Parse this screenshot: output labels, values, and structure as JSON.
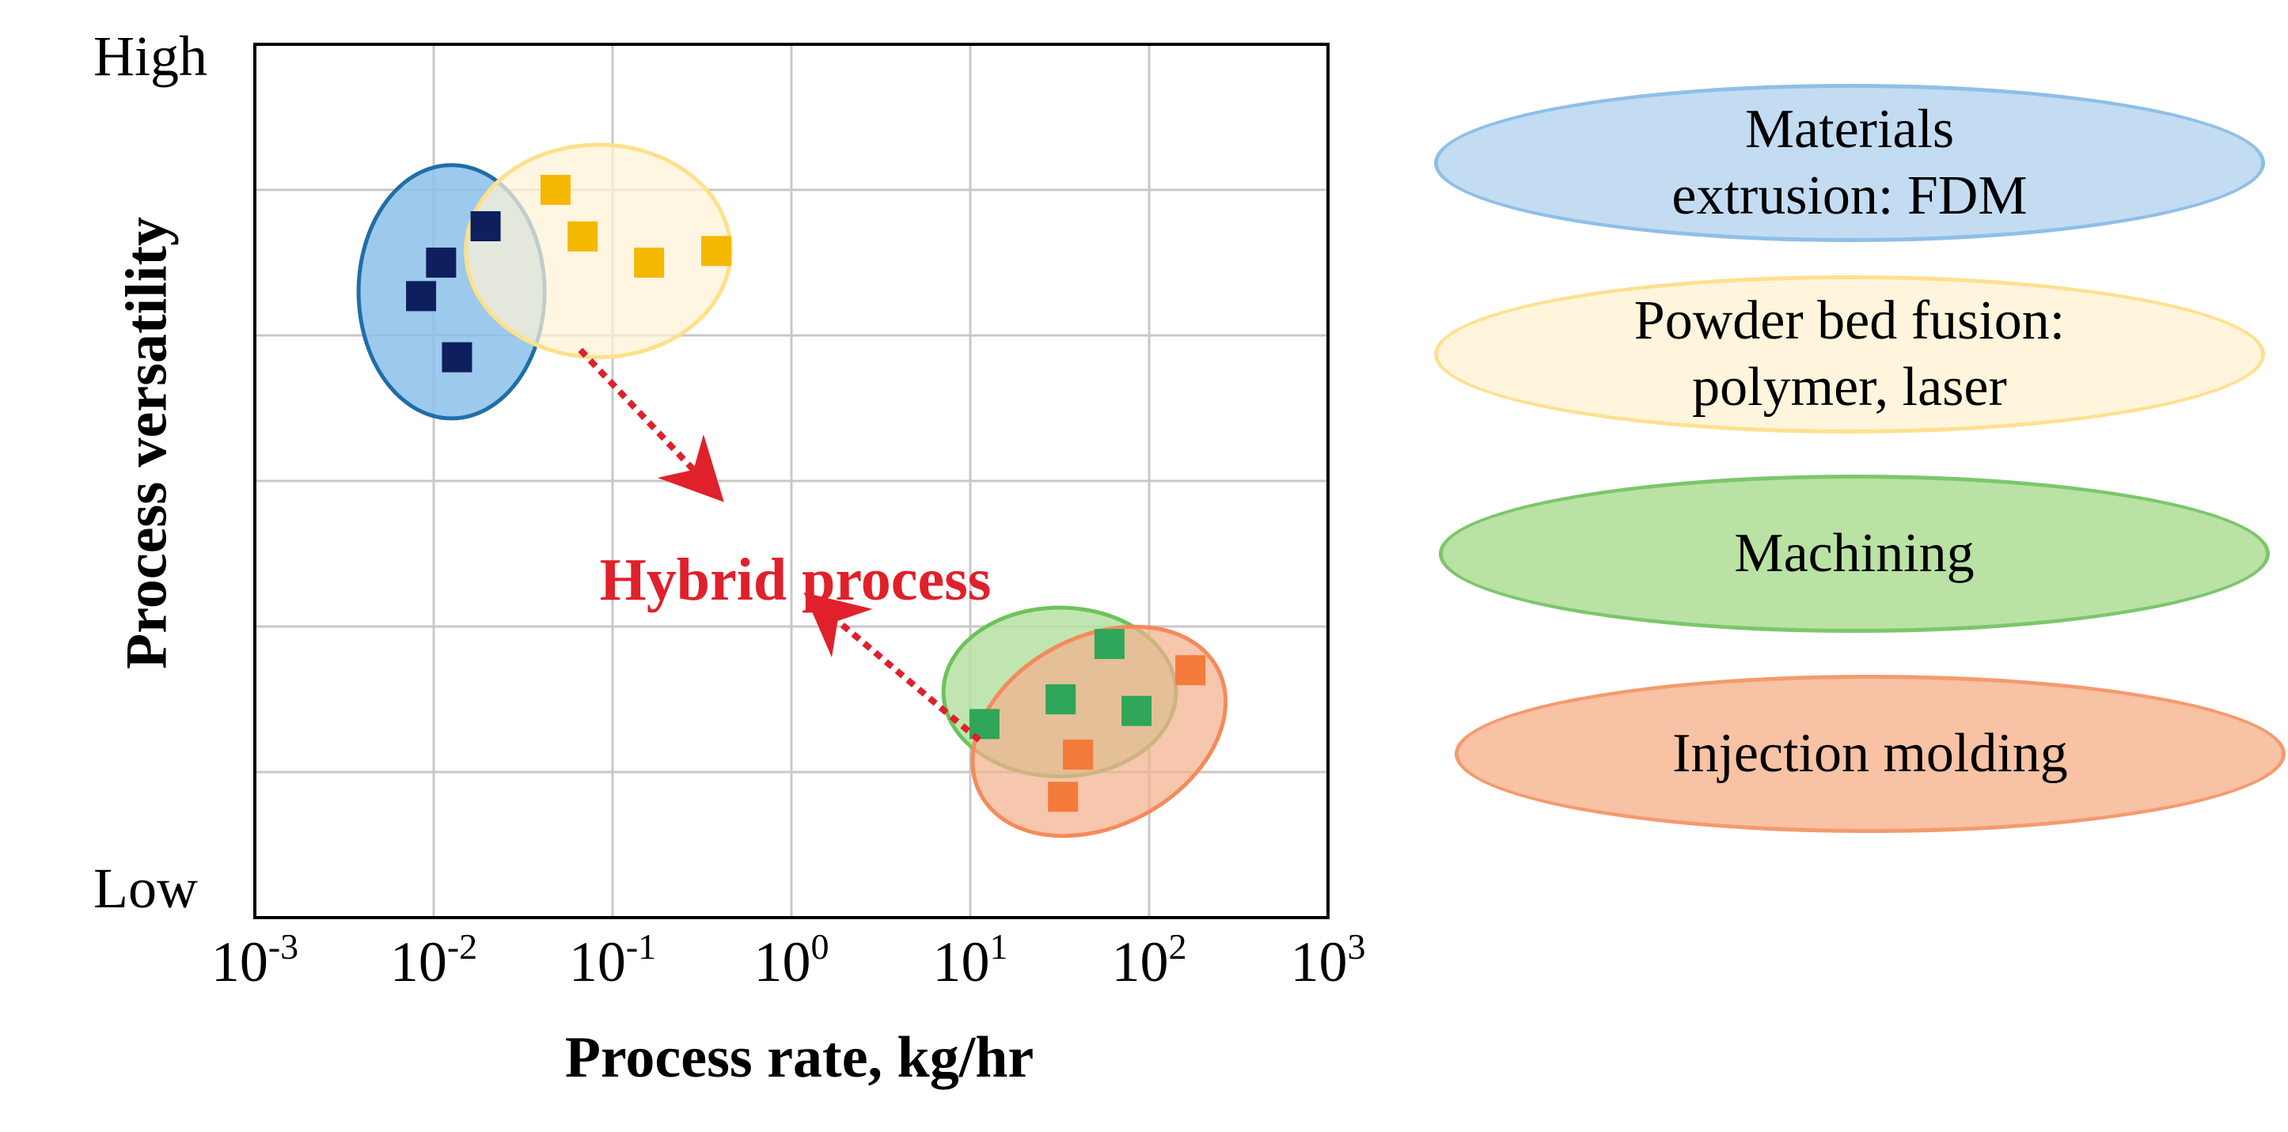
{
  "chart_data": {
    "type": "scatter",
    "xlabel": "Process rate, kg/hr",
    "ylabel": "Process versatility",
    "xscale": "log",
    "xlim": [
      0.001,
      1000
    ],
    "ylim": [
      0,
      6
    ],
    "y_tick_labels": {
      "top": "High",
      "bottom": "Low"
    },
    "x_ticks": [
      {
        "base": "10",
        "exp": "-3"
      },
      {
        "base": "10",
        "exp": "-2"
      },
      {
        "base": "10",
        "exp": "-1"
      },
      {
        "base": "10",
        "exp": "0"
      },
      {
        "base": "10",
        "exp": "1"
      },
      {
        "base": "10",
        "exp": "2"
      },
      {
        "base": "10",
        "exp": "3"
      }
    ],
    "grid": true,
    "annotation": "Hybrid process",
    "series": [
      {
        "name": "Materials extrusion: FDM",
        "color": "#0d1f5c",
        "fill": "#8cc0ea",
        "stroke": "#1f6ea8",
        "points": [
          [
            0.0085,
            4.27
          ],
          [
            0.011,
            4.5
          ],
          [
            0.0195,
            4.75
          ],
          [
            0.0135,
            3.85
          ]
        ],
        "ellipse": {
          "cx_log": -1.9,
          "cy": 4.3,
          "rx_dec": 0.52,
          "ry": 0.87
        }
      },
      {
        "name": "Powder bed fusion: polymer, laser",
        "color": "#f5b800",
        "fill": "#fff3d6",
        "stroke": "#ffe08a",
        "points": [
          [
            0.048,
            5.0
          ],
          [
            0.068,
            4.68
          ],
          [
            0.16,
            4.5
          ],
          [
            0.38,
            4.58
          ]
        ],
        "ellipse": {
          "cx_log": -1.08,
          "cy": 4.58,
          "rx_dec": 0.74,
          "ry": 0.73
        }
      },
      {
        "name": "Machining",
        "color": "#2fa65a",
        "fill": "#b6e0a2",
        "stroke": "#6cc35a",
        "points": [
          [
            12,
            1.33
          ],
          [
            32,
            1.5
          ],
          [
            60,
            1.88
          ],
          [
            85,
            1.42
          ]
        ],
        "ellipse": {
          "cx_log": 1.5,
          "cy": 1.55,
          "rx_dec": 0.65,
          "ry": 0.58
        }
      },
      {
        "name": "Injection molding",
        "color": "#f47b3c",
        "fill": "#f2b08d",
        "stroke": "#f58a5a",
        "points": [
          [
            170,
            1.7
          ],
          [
            40,
            1.12
          ],
          [
            33,
            0.83
          ]
        ],
        "ellipse": {
          "cx_log": 1.72,
          "cy": 1.28,
          "rx_dec": 0.75,
          "ry": 0.65
        }
      }
    ]
  },
  "legend": [
    {
      "label": "Materials extrusion: FDM",
      "fill": "#c3dcf2",
      "stroke": "#8fbfe8"
    },
    {
      "label": "Powder bed fusion: polymer, laser",
      "fill": "#fff5dc",
      "stroke": "#ffe090"
    },
    {
      "label": "Machining",
      "fill": "#b9e2a4",
      "stroke": "#7cc66c"
    },
    {
      "label": "Injection molding",
      "fill": "#f8c2a4",
      "stroke": "#f59a6e"
    }
  ],
  "legend_lines": [
    [
      "Materials",
      "extrusion: FDM"
    ],
    [
      "Powder bed fusion:",
      "polymer, laser"
    ],
    [
      "Machining"
    ],
    [
      "Injection molding"
    ]
  ]
}
